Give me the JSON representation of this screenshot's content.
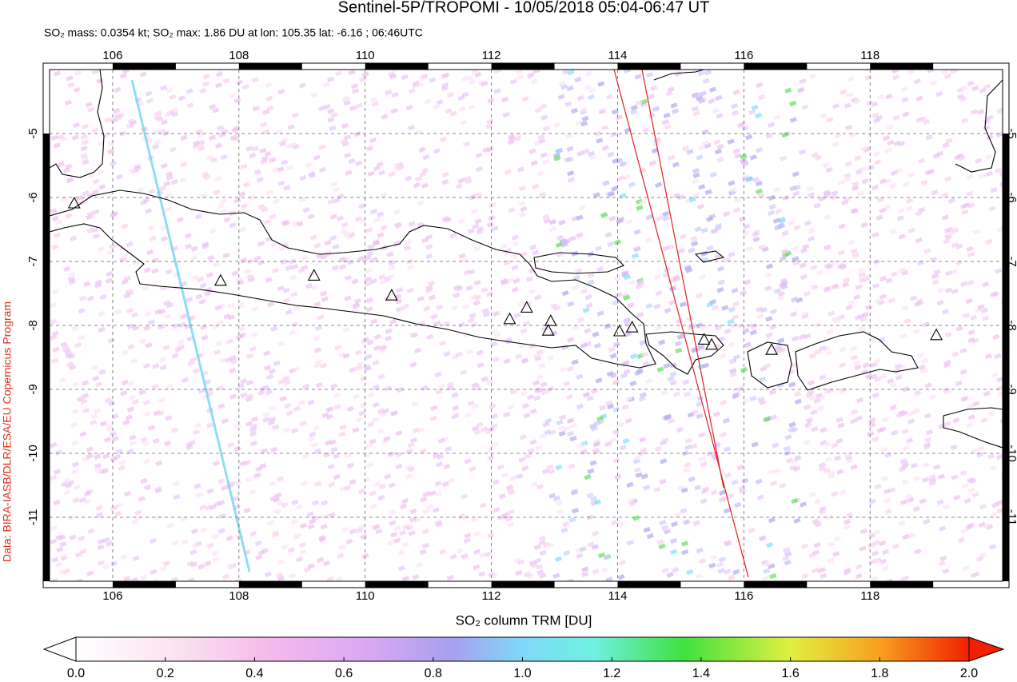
{
  "chart_data": {
    "type": "map",
    "title": "Sentinel-5P/TROPOMI - 10/05/2018 05:04-06:47 UT",
    "subtitle": "SO₂ mass: 0.0354 kt; SO₂ max: 1.86 DU at lon: 105.35 lat: -6.16 ; 06:46UTC",
    "credit": "Data: BIRA-IASB/DLR/ESA/EU Copernicus Program",
    "xlim": [
      105,
      120.1
    ],
    "ylim": [
      -12,
      -4
    ],
    "xticks": [
      106,
      108,
      110,
      112,
      114,
      116,
      118
    ],
    "yticks": [
      -5,
      -6,
      -7,
      -8,
      -9,
      -10,
      -11
    ],
    "grid": true,
    "volcanoes": {
      "lon": [
        105.39,
        107.71,
        109.19,
        110.42,
        112.29,
        112.56,
        112.94,
        112.9,
        114.03,
        114.23,
        115.37,
        115.49,
        116.44,
        119.05
      ],
      "lat": [
        -6.1,
        -7.31,
        -7.23,
        -7.54,
        -7.91,
        -7.73,
        -7.94,
        -8.09,
        -8.1,
        -8.04,
        -8.23,
        -8.31,
        -8.39,
        -8.16
      ]
    },
    "colorbar": {
      "label": "SO₂ column TRM [DU]",
      "lim": [
        0,
        2
      ],
      "ticks": [
        {
          "value": 0,
          "label": "0.0"
        },
        {
          "value": 0.2,
          "label": "0.2"
        },
        {
          "value": 0.4,
          "label": "0.4"
        },
        {
          "value": 0.6,
          "label": "0.6"
        },
        {
          "value": 0.8,
          "label": "0.8"
        },
        {
          "value": 1,
          "label": "1.0"
        },
        {
          "value": 1.2,
          "label": "1.2"
        },
        {
          "value": 1.4,
          "label": "1.4"
        },
        {
          "value": 1.6,
          "label": "1.6"
        },
        {
          "value": 1.8,
          "label": "1.8"
        },
        {
          "value": 2,
          "label": "2.0"
        }
      ]
    }
  }
}
